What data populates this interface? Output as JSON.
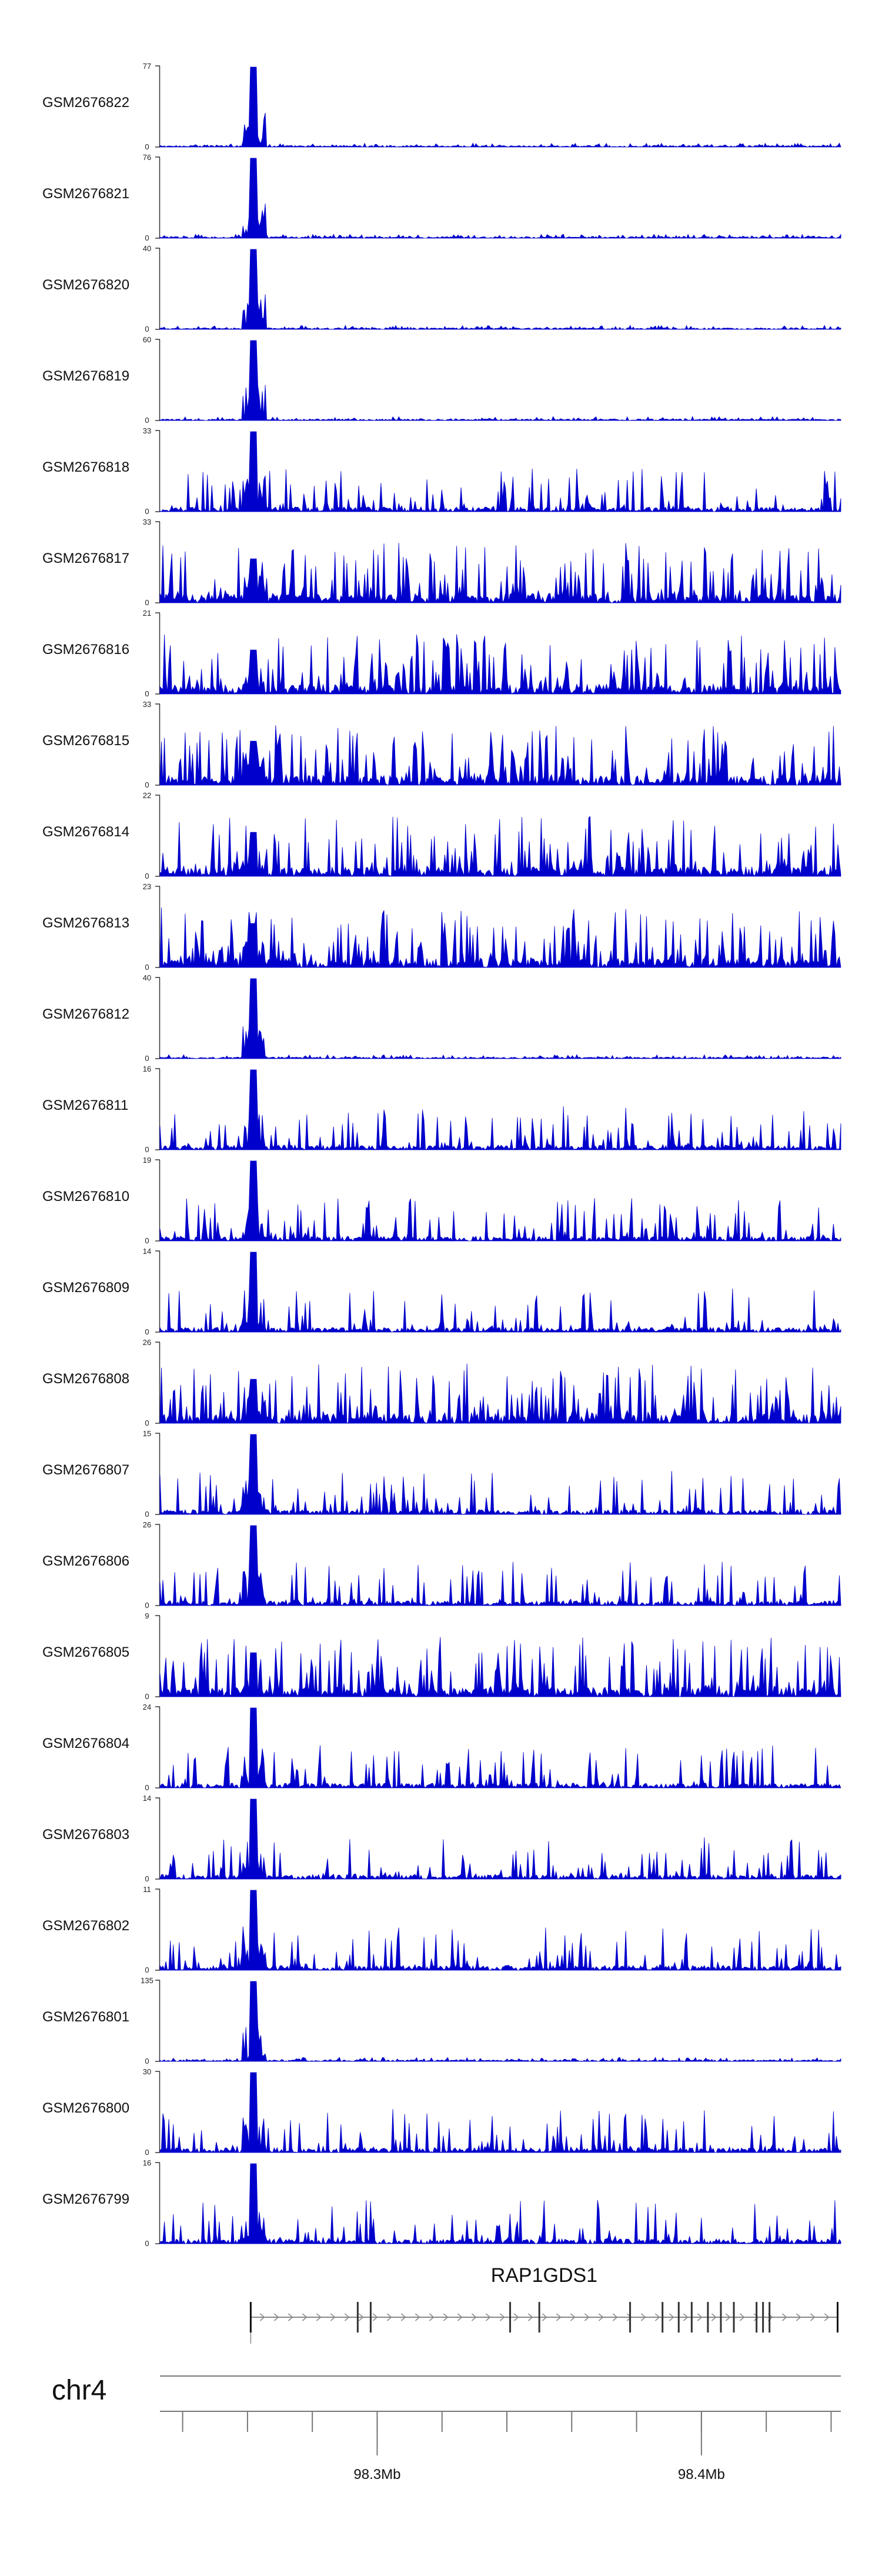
{
  "chart_data": {
    "type": "area",
    "title": "",
    "color": "#0000CC",
    "tracks": [
      {
        "name": "GSM2676822",
        "ymax": "77",
        "ymin": "0",
        "profile": "sharp"
      },
      {
        "name": "GSM2676821",
        "ymax": "76",
        "ymin": "0",
        "profile": "sharp"
      },
      {
        "name": "GSM2676820",
        "ymax": "40",
        "ymin": "0",
        "profile": "sharp"
      },
      {
        "name": "GSM2676819",
        "ymax": "60",
        "ymin": "0",
        "profile": "sharp"
      },
      {
        "name": "GSM2676818",
        "ymax": "33",
        "ymin": "0",
        "profile": "medium"
      },
      {
        "name": "GSM2676817",
        "ymax": "33",
        "ymin": "0",
        "profile": "noisy"
      },
      {
        "name": "GSM2676816",
        "ymax": "21",
        "ymin": "0",
        "profile": "noisy"
      },
      {
        "name": "GSM2676815",
        "ymax": "33",
        "ymin": "0",
        "profile": "noisy"
      },
      {
        "name": "GSM2676814",
        "ymax": "22",
        "ymin": "0",
        "profile": "noisy"
      },
      {
        "name": "GSM2676813",
        "ymax": "23",
        "ymin": "0",
        "profile": "noisy"
      },
      {
        "name": "GSM2676812",
        "ymax": "40",
        "ymin": "0",
        "profile": "sharp"
      },
      {
        "name": "GSM2676811",
        "ymax": "16",
        "ymin": "0",
        "profile": "medium"
      },
      {
        "name": "GSM2676810",
        "ymax": "19",
        "ymin": "0",
        "profile": "medium"
      },
      {
        "name": "GSM2676809",
        "ymax": "14",
        "ymin": "0",
        "profile": "medium"
      },
      {
        "name": "GSM2676808",
        "ymax": "26",
        "ymin": "0",
        "profile": "noisy"
      },
      {
        "name": "GSM2676807",
        "ymax": "15",
        "ymin": "0",
        "profile": "medium"
      },
      {
        "name": "GSM2676806",
        "ymax": "26",
        "ymin": "0",
        "profile": "medium"
      },
      {
        "name": "GSM2676805",
        "ymax": "9",
        "ymin": "0",
        "profile": "noisy"
      },
      {
        "name": "GSM2676804",
        "ymax": "24",
        "ymin": "0",
        "profile": "medium"
      },
      {
        "name": "GSM2676803",
        "ymax": "14",
        "ymin": "0",
        "profile": "medium"
      },
      {
        "name": "GSM2676802",
        "ymax": "11",
        "ymin": "0",
        "profile": "medium"
      },
      {
        "name": "GSM2676801",
        "ymax": "135",
        "ymin": "0",
        "profile": "sharp"
      },
      {
        "name": "GSM2676800",
        "ymax": "30",
        "ymin": "0",
        "profile": "medium"
      },
      {
        "name": "GSM2676799",
        "ymax": "16",
        "ymin": "0",
        "profile": "medium"
      }
    ],
    "gene": {
      "name": "RAP1GDS1",
      "strand": "+",
      "start_mb": 98.261,
      "end_mb": 98.442,
      "exons_mb": [
        98.261,
        98.294,
        98.298,
        98.341,
        98.35,
        98.378,
        98.388,
        98.393,
        98.397,
        98.402,
        98.406,
        98.41,
        98.417,
        98.419,
        98.421,
        98.442
      ]
    },
    "xaxis": {
      "chrom": "chr4",
      "start_mb": 98.233,
      "end_mb": 98.443,
      "ticks_mb": [
        98.24,
        98.26,
        98.28,
        98.3,
        98.32,
        98.34,
        98.36,
        98.38,
        98.4,
        98.42,
        98.44
      ],
      "labeled_ticks": [
        {
          "pos_mb": 98.3,
          "label": "98.3Mb"
        },
        {
          "pos_mb": 98.4,
          "label": "98.4Mb"
        }
      ]
    }
  }
}
